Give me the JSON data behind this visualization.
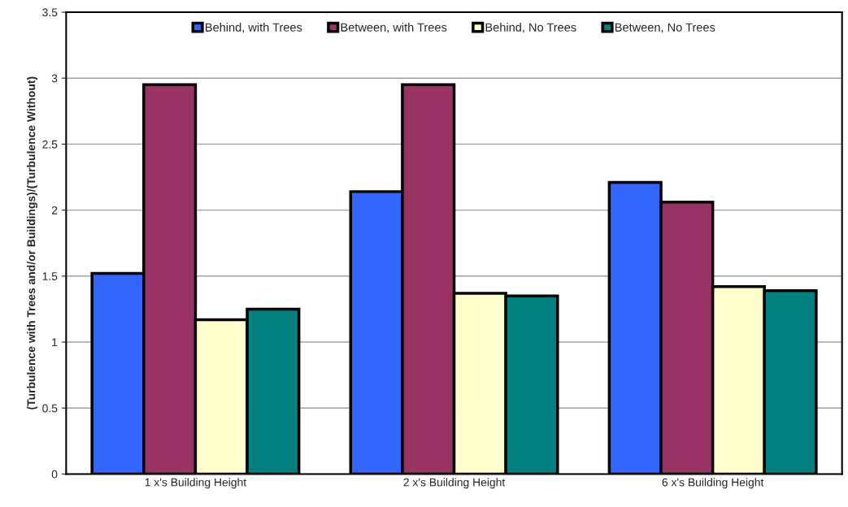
{
  "chart_data": {
    "type": "bar",
    "ylabel": "(Turbulence with Trees and/or Buildings)/(Turbulence Without)",
    "categories": [
      "1 x's Building Height",
      "2 x's Building Height",
      "6 x's Building Height"
    ],
    "series": [
      {
        "name": "Behind, with Trees",
        "color": "#3366ff",
        "values": [
          1.52,
          2.14,
          2.21
        ]
      },
      {
        "name": "Between, with Trees",
        "color": "#993366",
        "values": [
          2.95,
          2.95,
          2.06
        ]
      },
      {
        "name": "Behind, No Trees",
        "color": "#ffffcc",
        "values": [
          1.17,
          1.37,
          1.42
        ]
      },
      {
        "name": "Between, No Trees",
        "color": "#008080",
        "values": [
          1.25,
          1.35,
          1.39
        ]
      }
    ],
    "ylim": [
      0,
      3.5
    ],
    "yticks": [
      0,
      0.5,
      1,
      1.5,
      2,
      2.5,
      3,
      3.5
    ],
    "grid": "y",
    "legend": "top"
  }
}
